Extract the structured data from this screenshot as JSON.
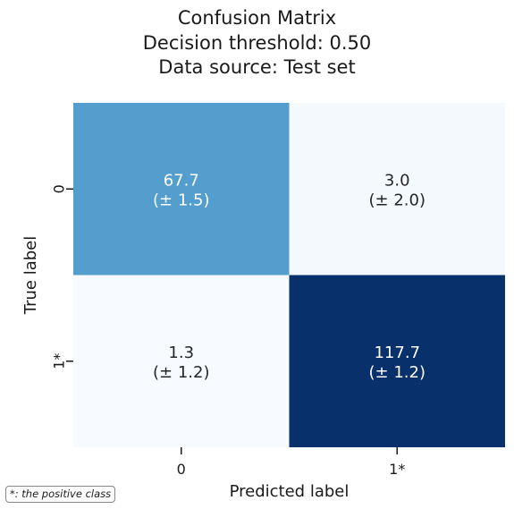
{
  "chart_data": {
    "type": "heatmap",
    "title_lines": [
      "Confusion Matrix",
      "Decision threshold: 0.50",
      "Data source: Test set"
    ],
    "xlabel": "Predicted label",
    "ylabel": "True label",
    "x_categories": [
      "0",
      "1*"
    ],
    "y_categories": [
      "0",
      "1*"
    ],
    "cells": [
      [
        {
          "value": 67.7,
          "std": 1.5,
          "label": "67.7",
          "std_label": "(± 1.5)"
        },
        {
          "value": 3.0,
          "std": 2.0,
          "label": "3.0",
          "std_label": "(± 2.0)"
        }
      ],
      [
        {
          "value": 1.3,
          "std": 1.2,
          "label": "1.3",
          "std_label": "(± 1.2)"
        },
        {
          "value": 117.7,
          "std": 1.2,
          "label": "117.7",
          "std_label": "(± 1.2)"
        }
      ]
    ],
    "colormap": "Blues",
    "colorbar": false,
    "grid": false
  },
  "footnote": "*: the positive class"
}
